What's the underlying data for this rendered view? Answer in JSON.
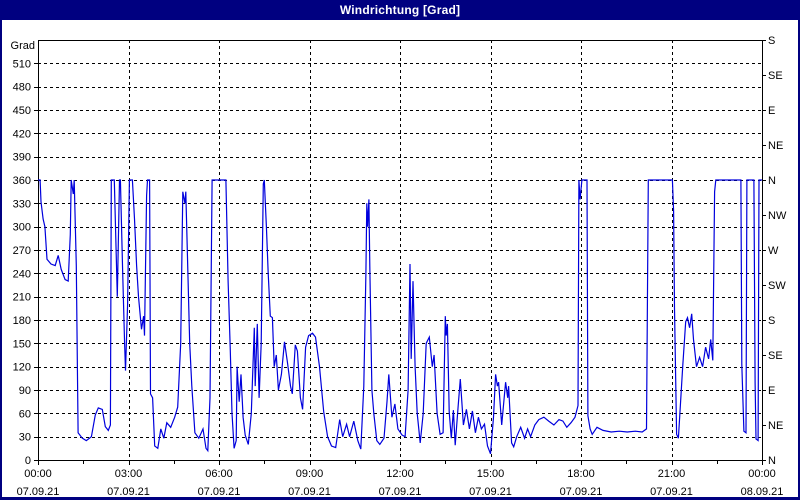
{
  "window": {
    "title": "Windrichtung [Grad]"
  },
  "chart_data": {
    "type": "line",
    "title": "Windrichtung [Grad]",
    "ylabel": "Grad",
    "y_axis": {
      "min": 0,
      "max": 540,
      "tick_step": 30,
      "tick_labels": [
        0,
        30,
        60,
        90,
        120,
        150,
        180,
        210,
        240,
        270,
        300,
        330,
        360,
        390,
        420,
        450,
        480,
        510
      ]
    },
    "right_axis": {
      "tick_step_degrees": 45,
      "labels_bottom_to_top": [
        "N",
        "NE",
        "E",
        "SE",
        "S",
        "SW",
        "W",
        "NW",
        "N",
        "NE",
        "E",
        "SE",
        "S"
      ]
    },
    "x_axis": {
      "min_hours": 0,
      "max_hours": 24,
      "major_tick_hours": 3,
      "minor_tick_hours": 1.5,
      "labels": [
        {
          "time": "00:00",
          "date": "07.09.21"
        },
        {
          "time": "03:00",
          "date": "07.09.21"
        },
        {
          "time": "06:00",
          "date": "07.09.21"
        },
        {
          "time": "09:00",
          "date": "07.09.21"
        },
        {
          "time": "12:00",
          "date": "07.09.21"
        },
        {
          "time": "15:00",
          "date": "07.09.21"
        },
        {
          "time": "18:00",
          "date": "07.09.21"
        },
        {
          "time": "21:00",
          "date": "07.09.21"
        },
        {
          "time": "00:00",
          "date": "08.09.21"
        }
      ]
    },
    "grid": {
      "horizontal_step_deg": 30,
      "vertical_step_hours": 3,
      "style": "dashed"
    },
    "legend": "none",
    "colors": {
      "line": "#0000dd",
      "grid": "#000000",
      "frame": "#000000",
      "titlebar": "#000080",
      "title_text": "#ffffff",
      "background": "#ffffff"
    },
    "series": [
      {
        "name": "Windrichtung",
        "points": [
          [
            0.0,
            360
          ],
          [
            0.07,
            360
          ],
          [
            0.1,
            332
          ],
          [
            0.17,
            310
          ],
          [
            0.23,
            300
          ],
          [
            0.3,
            258
          ],
          [
            0.43,
            252
          ],
          [
            0.57,
            250
          ],
          [
            0.67,
            263
          ],
          [
            0.77,
            245
          ],
          [
            0.9,
            232
          ],
          [
            1.0,
            230
          ],
          [
            1.07,
            290
          ],
          [
            1.1,
            360
          ],
          [
            1.17,
            342
          ],
          [
            1.2,
            360
          ],
          [
            1.27,
            250
          ],
          [
            1.33,
            35
          ],
          [
            1.47,
            28
          ],
          [
            1.6,
            25
          ],
          [
            1.77,
            30
          ],
          [
            1.9,
            58
          ],
          [
            2.0,
            67
          ],
          [
            2.13,
            65
          ],
          [
            2.23,
            43
          ],
          [
            2.33,
            38
          ],
          [
            2.4,
            45
          ],
          [
            2.43,
            360
          ],
          [
            2.53,
            360
          ],
          [
            2.63,
            210
          ],
          [
            2.7,
            360
          ],
          [
            2.73,
            360
          ],
          [
            2.8,
            250
          ],
          [
            2.87,
            150
          ],
          [
            2.9,
            115
          ],
          [
            2.97,
            200
          ],
          [
            3.03,
            360
          ],
          [
            3.13,
            360
          ],
          [
            3.2,
            310
          ],
          [
            3.27,
            250
          ],
          [
            3.33,
            210
          ],
          [
            3.43,
            168
          ],
          [
            3.5,
            185
          ],
          [
            3.53,
            160
          ],
          [
            3.6,
            340
          ],
          [
            3.63,
            360
          ],
          [
            3.7,
            360
          ],
          [
            3.73,
            85
          ],
          [
            3.8,
            80
          ],
          [
            3.87,
            18
          ],
          [
            3.97,
            15
          ],
          [
            4.07,
            40
          ],
          [
            4.17,
            28
          ],
          [
            4.27,
            48
          ],
          [
            4.4,
            42
          ],
          [
            4.53,
            55
          ],
          [
            4.63,
            68
          ],
          [
            4.73,
            150
          ],
          [
            4.8,
            345
          ],
          [
            4.87,
            330
          ],
          [
            4.9,
            345
          ],
          [
            4.97,
            240
          ],
          [
            5.03,
            150
          ],
          [
            5.1,
            95
          ],
          [
            5.2,
            35
          ],
          [
            5.33,
            28
          ],
          [
            5.47,
            40
          ],
          [
            5.57,
            15
          ],
          [
            5.63,
            12
          ],
          [
            5.7,
            80
          ],
          [
            5.77,
            360
          ],
          [
            6.0,
            360
          ],
          [
            6.23,
            360
          ],
          [
            6.3,
            230
          ],
          [
            6.37,
            145
          ],
          [
            6.43,
            60
          ],
          [
            6.5,
            15
          ],
          [
            6.57,
            25
          ],
          [
            6.6,
            120
          ],
          [
            6.67,
            75
          ],
          [
            6.73,
            110
          ],
          [
            6.8,
            55
          ],
          [
            6.87,
            32
          ],
          [
            6.97,
            20
          ],
          [
            7.07,
            60
          ],
          [
            7.17,
            170
          ],
          [
            7.2,
            95
          ],
          [
            7.27,
            175
          ],
          [
            7.33,
            80
          ],
          [
            7.4,
            150
          ],
          [
            7.47,
            355
          ],
          [
            7.5,
            360
          ],
          [
            7.57,
            300
          ],
          [
            7.63,
            240
          ],
          [
            7.7,
            185
          ],
          [
            7.77,
            183
          ],
          [
            7.83,
            120
          ],
          [
            7.9,
            135
          ],
          [
            7.97,
            90
          ],
          [
            8.07,
            110
          ],
          [
            8.17,
            152
          ],
          [
            8.27,
            125
          ],
          [
            8.37,
            95
          ],
          [
            8.43,
            85
          ],
          [
            8.53,
            148
          ],
          [
            8.6,
            140
          ],
          [
            8.7,
            80
          ],
          [
            8.77,
            65
          ],
          [
            8.87,
            145
          ],
          [
            8.97,
            160
          ],
          [
            9.1,
            163
          ],
          [
            9.2,
            158
          ],
          [
            9.33,
            120
          ],
          [
            9.47,
            62
          ],
          [
            9.6,
            30
          ],
          [
            9.73,
            18
          ],
          [
            9.87,
            16
          ],
          [
            10.0,
            52
          ],
          [
            10.1,
            30
          ],
          [
            10.23,
            46
          ],
          [
            10.33,
            30
          ],
          [
            10.47,
            50
          ],
          [
            10.6,
            25
          ],
          [
            10.7,
            14
          ],
          [
            10.8,
            95
          ],
          [
            10.87,
            240
          ],
          [
            10.9,
            330
          ],
          [
            10.93,
            300
          ],
          [
            10.97,
            335
          ],
          [
            11.0,
            250
          ],
          [
            11.07,
            90
          ],
          [
            11.13,
            60
          ],
          [
            11.23,
            25
          ],
          [
            11.33,
            20
          ],
          [
            11.47,
            28
          ],
          [
            11.57,
            75
          ],
          [
            11.63,
            110
          ],
          [
            11.73,
            55
          ],
          [
            11.83,
            72
          ],
          [
            11.93,
            40
          ],
          [
            12.07,
            32
          ],
          [
            12.17,
            30
          ],
          [
            12.27,
            90
          ],
          [
            12.33,
            252
          ],
          [
            12.37,
            130
          ],
          [
            12.43,
            230
          ],
          [
            12.5,
            120
          ],
          [
            12.57,
            60
          ],
          [
            12.67,
            22
          ],
          [
            12.77,
            60
          ],
          [
            12.87,
            150
          ],
          [
            12.97,
            158
          ],
          [
            13.07,
            120
          ],
          [
            13.13,
            135
          ],
          [
            13.23,
            60
          ],
          [
            13.33,
            33
          ],
          [
            13.43,
            35
          ],
          [
            13.5,
            185
          ],
          [
            13.53,
            160
          ],
          [
            13.57,
            175
          ],
          [
            13.63,
            62
          ],
          [
            13.7,
            28
          ],
          [
            13.77,
            64
          ],
          [
            13.83,
            19
          ],
          [
            13.93,
            70
          ],
          [
            14.0,
            104
          ],
          [
            14.1,
            45
          ],
          [
            14.2,
            65
          ],
          [
            14.3,
            40
          ],
          [
            14.4,
            63
          ],
          [
            14.5,
            35
          ],
          [
            14.6,
            55
          ],
          [
            14.7,
            40
          ],
          [
            14.8,
            46
          ],
          [
            14.9,
            18
          ],
          [
            15.0,
            8
          ],
          [
            15.1,
            55
          ],
          [
            15.17,
            110
          ],
          [
            15.23,
            95
          ],
          [
            15.27,
            100
          ],
          [
            15.37,
            45
          ],
          [
            15.5,
            100
          ],
          [
            15.57,
            80
          ],
          [
            15.6,
            95
          ],
          [
            15.7,
            22
          ],
          [
            15.77,
            17
          ],
          [
            15.87,
            30
          ],
          [
            16.0,
            42
          ],
          [
            16.13,
            28
          ],
          [
            16.23,
            40
          ],
          [
            16.33,
            30
          ],
          [
            16.47,
            45
          ],
          [
            16.6,
            52
          ],
          [
            16.77,
            55
          ],
          [
            16.93,
            50
          ],
          [
            17.1,
            45
          ],
          [
            17.27,
            52
          ],
          [
            17.4,
            50
          ],
          [
            17.53,
            42
          ],
          [
            17.67,
            48
          ],
          [
            17.8,
            55
          ],
          [
            17.9,
            70
          ],
          [
            17.93,
            360
          ],
          [
            17.97,
            335
          ],
          [
            18.03,
            360
          ],
          [
            18.2,
            360
          ],
          [
            18.23,
            57
          ],
          [
            18.3,
            40
          ],
          [
            18.37,
            33
          ],
          [
            18.53,
            42
          ],
          [
            18.73,
            38
          ],
          [
            19.0,
            36
          ],
          [
            19.27,
            37
          ],
          [
            19.53,
            36
          ],
          [
            19.8,
            37
          ],
          [
            20.03,
            36
          ],
          [
            20.17,
            40
          ],
          [
            20.23,
            360
          ],
          [
            20.67,
            360
          ],
          [
            21.03,
            360
          ],
          [
            21.07,
            320
          ],
          [
            21.1,
            195
          ],
          [
            21.17,
            33
          ],
          [
            21.23,
            28
          ],
          [
            21.37,
            120
          ],
          [
            21.47,
            178
          ],
          [
            21.53,
            183
          ],
          [
            21.6,
            170
          ],
          [
            21.67,
            188
          ],
          [
            21.73,
            155
          ],
          [
            21.83,
            120
          ],
          [
            21.93,
            132
          ],
          [
            22.03,
            120
          ],
          [
            22.13,
            145
          ],
          [
            22.23,
            130
          ],
          [
            22.3,
            155
          ],
          [
            22.37,
            128
          ],
          [
            22.43,
            345
          ],
          [
            22.47,
            360
          ],
          [
            23.3,
            360
          ],
          [
            23.33,
            123
          ],
          [
            23.4,
            37
          ],
          [
            23.47,
            35
          ],
          [
            23.5,
            360
          ],
          [
            23.73,
            360
          ],
          [
            23.77,
            100
          ],
          [
            23.8,
            27
          ],
          [
            23.87,
            25
          ],
          [
            23.9,
            360
          ],
          [
            24.0,
            360
          ]
        ]
      }
    ]
  }
}
